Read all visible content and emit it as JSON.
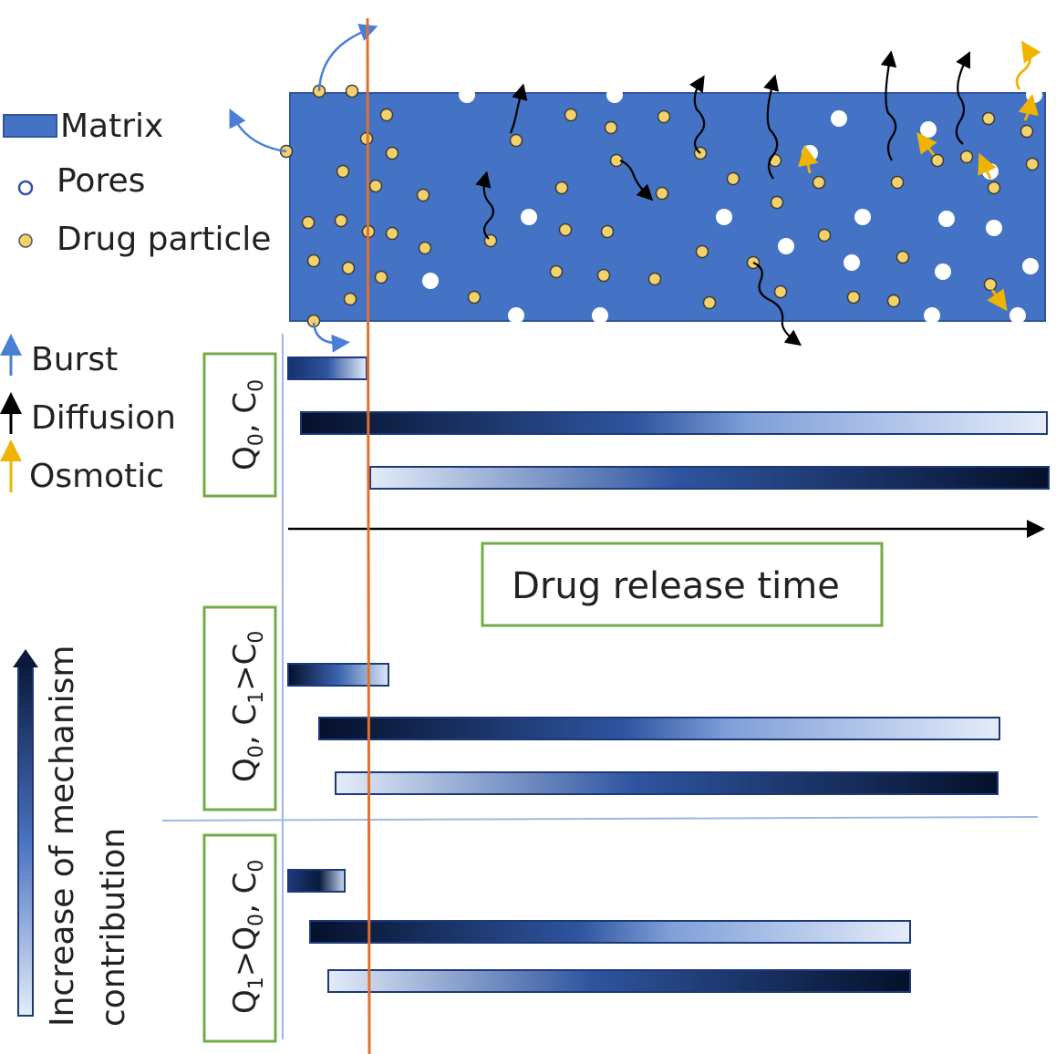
{
  "legend": {
    "matrix": "Matrix",
    "pores": "Pores",
    "drug_particle": "Drug particle",
    "burst": "Burst",
    "diffusion": "Diffusion",
    "osmotic": "Osmotic"
  },
  "time_axis_label": "Drug release time",
  "vertical_axis_label_line1": "Increase of mechanism",
  "vertical_axis_label_line2": "contribution",
  "conditions": [
    {
      "label": "Q0, C0",
      "q_main": "Q",
      "q_sub1": "0",
      "c_main": "C",
      "c_sub": "0",
      "cmp": ", "
    },
    {
      "label": "Q0, C1>C0"
    },
    {
      "label": "Q1>Q0, C0"
    }
  ],
  "colors": {
    "matrix": "#4472c4",
    "dark_bar": "#0a1a3d",
    "mid_bar": "#2f55a0",
    "light_bar": "#dbe6f7",
    "condition_box": "#70ad47",
    "time_marker": "#e07030",
    "burst_arrow": "#4a7fd6",
    "diffusion_arrow": "#000000",
    "osmotic_arrow": "#f0b400",
    "particle_fill": "#f3d26b"
  }
}
